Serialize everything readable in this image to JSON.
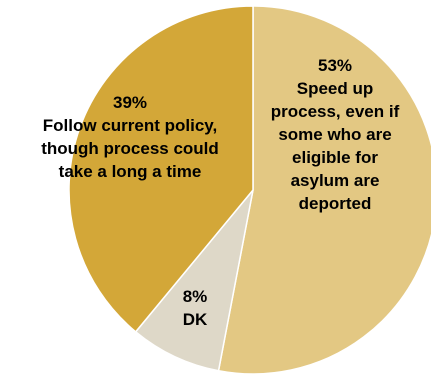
{
  "chart_data": {
    "type": "pie",
    "title": "",
    "slices": [
      {
        "label": "Speed up process, even if some who are eligible for asylum are deported",
        "percent_label": "53%",
        "value": 53,
        "color": "#e3c883",
        "label_lines": [
          "Speed up",
          "process, even if",
          "some who are",
          "eligible for",
          "asylum are",
          "deported"
        ]
      },
      {
        "label": "DK",
        "percent_label": "8%",
        "value": 8,
        "color": "#ded8c8",
        "label_lines": [
          "DK"
        ]
      },
      {
        "label": "Follow current policy, though process could take a long a time",
        "percent_label": "39%",
        "value": 39,
        "color": "#d3a738",
        "label_lines": [
          "Follow current policy,",
          "though process could",
          "take a long a time"
        ]
      }
    ],
    "start": "12 o'clock",
    "direction": "clockwise"
  }
}
